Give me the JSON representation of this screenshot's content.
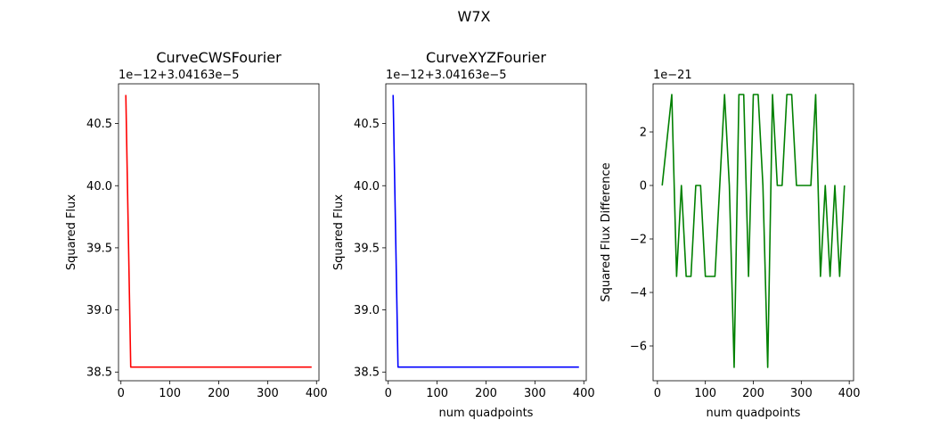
{
  "figure": {
    "suptitle": "W7X"
  },
  "chart_data": [
    {
      "type": "line",
      "title": "CurveCWSFourier",
      "xlabel": "",
      "ylabel": "Squared Flux",
      "offset_text": "1e−12+3.04163e−5",
      "xlim": [
        -5,
        405
      ],
      "ylim": [
        38.43,
        40.82
      ],
      "xticks": [
        0,
        100,
        200,
        300,
        400
      ],
      "yticks": [
        38.5,
        39.0,
        39.5,
        40.0,
        40.5
      ],
      "ytick_labels": [
        "38.5",
        "39.0",
        "39.5",
        "40.0",
        "40.5"
      ],
      "series": [
        {
          "color": "#ff0000",
          "x": [
            10,
            20,
            390
          ],
          "y": [
            40.73,
            38.54,
            38.54
          ]
        }
      ]
    },
    {
      "type": "line",
      "title": "CurveXYZFourier",
      "xlabel": "num quadpoints",
      "ylabel": "Squared Flux",
      "offset_text": "1e−12+3.04163e−5",
      "xlim": [
        -5,
        405
      ],
      "ylim": [
        38.43,
        40.82
      ],
      "xticks": [
        0,
        100,
        200,
        300,
        400
      ],
      "yticks": [
        38.5,
        39.0,
        39.5,
        40.0,
        40.5
      ],
      "ytick_labels": [
        "38.5",
        "39.0",
        "39.5",
        "40.0",
        "40.5"
      ],
      "series": [
        {
          "color": "#0000ff",
          "x": [
            10,
            20,
            390
          ],
          "y": [
            40.73,
            38.54,
            38.54
          ]
        }
      ]
    },
    {
      "type": "line",
      "title": "",
      "xlabel": "num quadpoints",
      "ylabel": "Squared Flux Difference",
      "offset_text": "1e−21",
      "xlim": [
        -9,
        409
      ],
      "ylim": [
        -7.3,
        3.8
      ],
      "xticks": [
        0,
        100,
        200,
        300,
        400
      ],
      "yticks": [
        -6,
        -4,
        -2,
        0,
        2
      ],
      "ytick_labels": [
        "−6",
        "−4",
        "−2",
        "0",
        "2"
      ],
      "series": [
        {
          "color": "#008000",
          "x": [
            10,
            20,
            30,
            40,
            50,
            60,
            70,
            80,
            90,
            100,
            110,
            120,
            130,
            140,
            150,
            160,
            170,
            180,
            190,
            200,
            210,
            220,
            230,
            240,
            250,
            260,
            270,
            280,
            290,
            300,
            310,
            320,
            330,
            340,
            350,
            360,
            370,
            380,
            390
          ],
          "y": [
            0,
            1.7,
            3.4,
            -3.4,
            0,
            -3.4,
            -3.4,
            0,
            0,
            -3.4,
            -3.4,
            -3.4,
            0,
            3.4,
            0,
            -6.8,
            3.4,
            3.4,
            -3.4,
            3.4,
            3.4,
            0,
            -6.8,
            3.4,
            0,
            0,
            3.4,
            3.4,
            0,
            0,
            0,
            0,
            3.4,
            -3.4,
            0,
            -3.4,
            0,
            -3.4,
            0
          ]
        }
      ]
    }
  ]
}
